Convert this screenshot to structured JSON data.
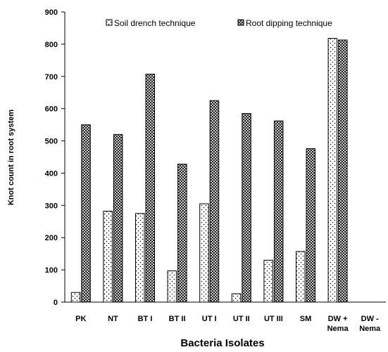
{
  "chart_data": {
    "type": "bar",
    "categories": [
      "PK",
      "NT",
      "BT I",
      "BT II",
      "UT I",
      "UT II",
      "UT III",
      "SM",
      "DW + Nema",
      "DW - Nema"
    ],
    "category_lines": [
      [
        "PK"
      ],
      [
        "NT"
      ],
      [
        "BT I"
      ],
      [
        "BT II"
      ],
      [
        "UT I"
      ],
      [
        "UT II"
      ],
      [
        "UT III"
      ],
      [
        "SM"
      ],
      [
        "DW +",
        "Nema"
      ],
      [
        "DW -",
        "Nema"
      ]
    ],
    "series": [
      {
        "name": "Soil drench technique",
        "values": [
          30,
          282,
          275,
          97,
          305,
          26,
          130,
          157,
          818,
          0
        ],
        "pattern": "dots"
      },
      {
        "name": "Root dipping technique",
        "values": [
          550,
          520,
          707,
          428,
          625,
          585,
          562,
          476,
          813,
          0
        ],
        "pattern": "crosshatch"
      }
    ],
    "xlabel": "Bacteria Isolates",
    "ylabel": "Knot count in root system",
    "ylim": [
      0,
      900
    ],
    "yticks": [
      0,
      100,
      200,
      300,
      400,
      500,
      600,
      700,
      800,
      900
    ],
    "grid": false,
    "legend_position": "top"
  }
}
